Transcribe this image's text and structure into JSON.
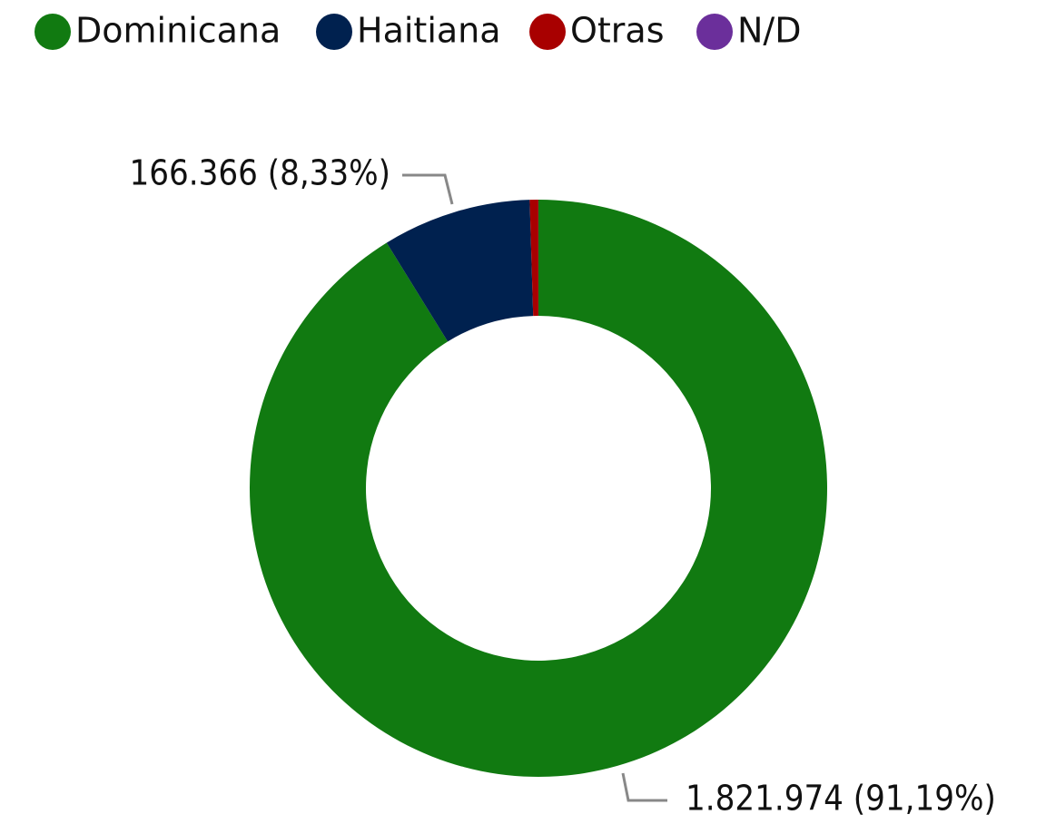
{
  "chart_data": {
    "type": "donut",
    "categories": [
      "Dominicana",
      "Haitiana",
      "Otras",
      "N/D"
    ],
    "values": [
      1821974,
      166366,
      9600,
      60
    ],
    "value_labels": [
      "1.821.974 (91,19%)",
      "166.366 (8,33%)",
      null,
      null
    ],
    "colors": [
      "#117a11",
      "#00214f",
      "#a80000",
      "#6b2f9b"
    ],
    "legend": "top-left"
  }
}
